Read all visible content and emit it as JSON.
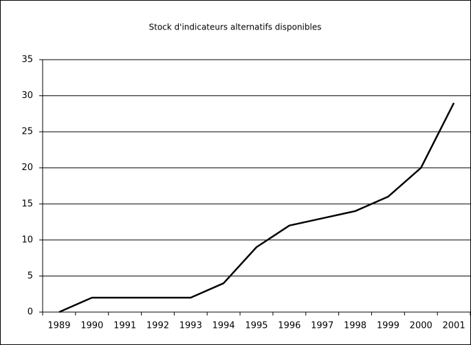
{
  "chart_data": {
    "type": "line",
    "title": "Stock d'indicateurs alternatifs disponibles",
    "categories": [
      "1989",
      "1990",
      "1991",
      "1992",
      "1993",
      "1994",
      "1995",
      "1996",
      "1997",
      "1998",
      "1999",
      "2000",
      "2001"
    ],
    "values": [
      0,
      2,
      2,
      2,
      2,
      4,
      9,
      12,
      13,
      14,
      16,
      20,
      29
    ],
    "color": "#000000",
    "ylim": [
      0,
      35
    ],
    "yticks": [
      0,
      5,
      10,
      15,
      20,
      25,
      30,
      35
    ],
    "grid": true
  }
}
